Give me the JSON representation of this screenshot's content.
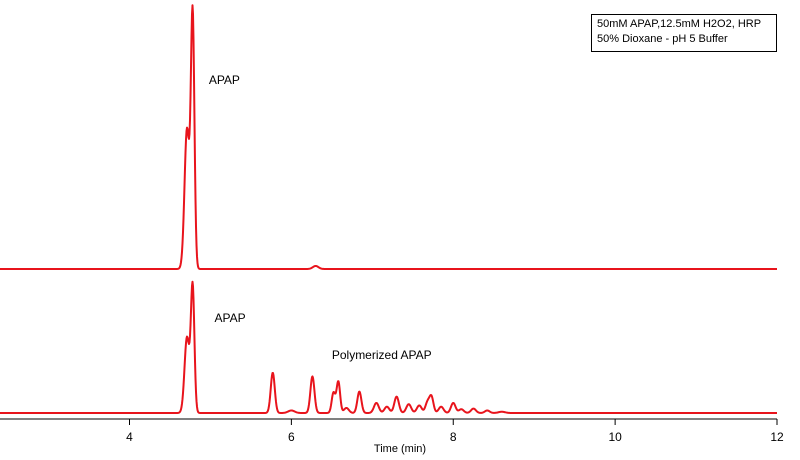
{
  "chart_data": {
    "type": "line",
    "legend": {
      "lines": [
        "50mM APAP,12.5mM H2O2, HRP",
        "50% Dioxane - pH 5 Buffer"
      ]
    },
    "xlabel": "Time (min)",
    "xlim": [
      2.4,
      12
    ],
    "xticks": [
      4,
      6,
      8,
      10,
      12
    ],
    "grid": false,
    "line_color": "#e8141c",
    "panels": [
      {
        "name": "top",
        "annotations": [
          {
            "text": "APAP",
            "x": 4.98
          }
        ],
        "peaks": [
          {
            "t": 4.78,
            "h": 1.0,
            "w": 0.022
          },
          {
            "t": 4.71,
            "h": 0.55,
            "w": 0.03
          },
          {
            "t": 6.3,
            "h": 0.012,
            "w": 0.035
          }
        ]
      },
      {
        "name": "bottom",
        "annotations": [
          {
            "text": "APAP",
            "x": 5.05
          },
          {
            "text": "Polymerized APAP",
            "x": 6.5
          }
        ],
        "peaks": [
          {
            "t": 4.78,
            "h": 1.0,
            "w": 0.022
          },
          {
            "t": 4.71,
            "h": 0.6,
            "w": 0.03
          },
          {
            "t": 5.77,
            "h": 0.32,
            "w": 0.025
          },
          {
            "t": 6.0,
            "h": 0.02,
            "w": 0.04
          },
          {
            "t": 6.26,
            "h": 0.29,
            "w": 0.025
          },
          {
            "t": 6.52,
            "h": 0.16,
            "w": 0.022
          },
          {
            "t": 6.58,
            "h": 0.25,
            "w": 0.022
          },
          {
            "t": 6.68,
            "h": 0.04,
            "w": 0.03
          },
          {
            "t": 6.84,
            "h": 0.17,
            "w": 0.025
          },
          {
            "t": 7.05,
            "h": 0.08,
            "w": 0.03
          },
          {
            "t": 7.18,
            "h": 0.05,
            "w": 0.03
          },
          {
            "t": 7.3,
            "h": 0.13,
            "w": 0.028
          },
          {
            "t": 7.45,
            "h": 0.07,
            "w": 0.03
          },
          {
            "t": 7.58,
            "h": 0.06,
            "w": 0.03
          },
          {
            "t": 7.68,
            "h": 0.08,
            "w": 0.025
          },
          {
            "t": 7.73,
            "h": 0.13,
            "w": 0.025
          },
          {
            "t": 7.85,
            "h": 0.05,
            "w": 0.03
          },
          {
            "t": 8.0,
            "h": 0.08,
            "w": 0.028
          },
          {
            "t": 8.1,
            "h": 0.03,
            "w": 0.03
          },
          {
            "t": 8.25,
            "h": 0.035,
            "w": 0.03
          },
          {
            "t": 8.42,
            "h": 0.02,
            "w": 0.03
          },
          {
            "t": 8.6,
            "h": 0.01,
            "w": 0.04
          }
        ]
      }
    ]
  }
}
